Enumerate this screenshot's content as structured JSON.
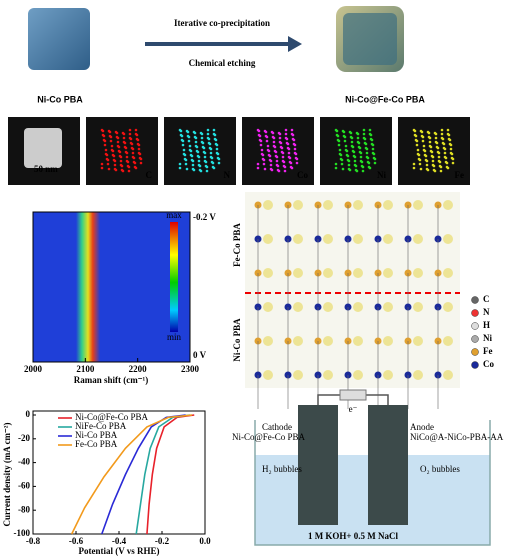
{
  "synthesis": {
    "step1": "Iterative co-precipitation",
    "step2": "Chemical etching",
    "start": "Ni-Co PBA",
    "product": "Ni-Co@Fe-Co PBA"
  },
  "eds": {
    "scale": "50 nm",
    "elements": [
      "C",
      "N",
      "Co",
      "Ni",
      "Fe"
    ]
  },
  "raman": {
    "xlabel": "Raman shift (cm⁻¹)",
    "xlim": [
      2000,
      2300
    ],
    "xticks": [
      2000,
      2100,
      2200,
      2300
    ],
    "top": "-0.2 V",
    "bottom": "0 V",
    "cmax": "max",
    "cmin": "min"
  },
  "structure": {
    "upper": "Fe-Co PBA",
    "lower": "Ni-Co PBA",
    "legend": [
      "C",
      "N",
      "H",
      "Ni",
      "Fe",
      "Co"
    ]
  },
  "lsv": {
    "type": "line",
    "xlabel": "Potential (V vs RHE)",
    "ylabel": "Current density (mA cm⁻²)",
    "xlim": [
      -0.8,
      0
    ],
    "ylim": [
      -100,
      0
    ],
    "xticks": [
      -0.8,
      -0.6,
      -0.4,
      -0.2,
      {
        "value": 0,
        "label": "0.0"
      }
    ],
    "yticks": [
      0,
      -20,
      -40,
      -60,
      -80,
      -100
    ],
    "series": [
      {
        "name": "Ni-Co@Fe-Co PBA",
        "color": "#e8212a",
        "x": [
          -0.27,
          -0.26,
          -0.245,
          -0.225,
          -0.19,
          -0.13,
          -0.05
        ],
        "values": [
          -100,
          -75,
          -50,
          -28,
          -10,
          -2,
          0
        ]
      },
      {
        "name": "NiFe-Co PBA",
        "color": "#27a8a0",
        "x": [
          -0.32,
          -0.3,
          -0.28,
          -0.255,
          -0.215,
          -0.15,
          -0.07
        ],
        "values": [
          -100,
          -75,
          -50,
          -28,
          -10,
          -2,
          0
        ]
      },
      {
        "name": "Ni-Co PBA",
        "color": "#2a2ad6",
        "x": [
          -0.48,
          -0.43,
          -0.37,
          -0.31,
          -0.25,
          -0.18,
          -0.09
        ],
        "values": [
          -100,
          -75,
          -50,
          -28,
          -10,
          -2,
          0
        ]
      },
      {
        "name": "Fe-Co PBA",
        "color": "#f29a1c",
        "x": [
          -0.62,
          -0.56,
          -0.47,
          -0.37,
          -0.27,
          -0.17,
          -0.06
        ],
        "values": [
          -100,
          -78,
          -52,
          -28,
          -10,
          -2,
          0
        ]
      }
    ]
  },
  "cell": {
    "electron": "e⁻",
    "cathode": "Cathode",
    "cathode_material": "Ni-Co@Fe-Co PBA",
    "anode": "Anode",
    "anode_material": "NiCo@A-NiCo-PBA-AA",
    "h2": "H₂ bubbles",
    "o2": "O₂ bubbles",
    "electrolyte": "1 M KOH+ 0.5 M NaCl"
  }
}
